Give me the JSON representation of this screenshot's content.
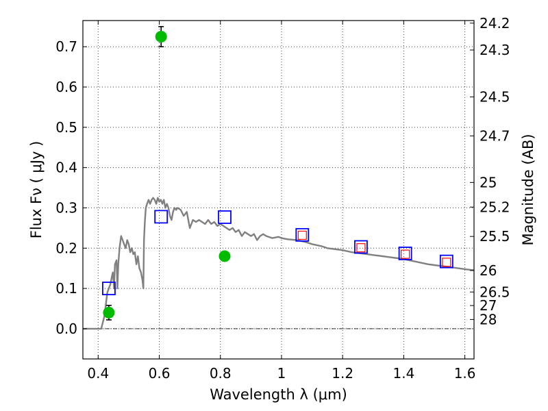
{
  "chart_data": {
    "type": "scatter",
    "xlabel": "Wavelength  λ (μm)",
    "ylabel": "Flux  Fν  ( μJy )",
    "ylabel2": "Magnitude (AB)",
    "xlim": [
      0.35,
      1.63
    ],
    "ylim": [
      -0.075,
      0.765
    ],
    "grid": true,
    "x_ticks": [
      {
        "value": 0.4,
        "label": "0.4"
      },
      {
        "value": 0.6,
        "label": "0.6"
      },
      {
        "value": 0.8,
        "label": "0.8"
      },
      {
        "value": 1.0,
        "label": "1"
      },
      {
        "value": 1.2,
        "label": "1.2"
      },
      {
        "value": 1.4,
        "label": "1.4"
      },
      {
        "value": 1.6,
        "label": "1.6"
      }
    ],
    "y_ticks": [
      {
        "value": 0.0,
        "label": "0.0"
      },
      {
        "value": 0.1,
        "label": "0.1"
      },
      {
        "value": 0.2,
        "label": "0.2"
      },
      {
        "value": 0.3,
        "label": "0.3"
      },
      {
        "value": 0.4,
        "label": "0.4"
      },
      {
        "value": 0.5,
        "label": "0.5"
      },
      {
        "value": 0.6,
        "label": "0.6"
      },
      {
        "value": 0.7,
        "label": "0.7"
      }
    ],
    "mag_ticks": [
      {
        "value": 24.2,
        "label": "24.2"
      },
      {
        "value": 24.3,
        "label": "24.3"
      },
      {
        "value": 24.5,
        "label": "24.5"
      },
      {
        "value": 24.7,
        "label": "24.7"
      },
      {
        "value": 25.0,
        "label": "25"
      },
      {
        "value": 25.2,
        "label": "25.2"
      },
      {
        "value": 25.5,
        "label": "25.5"
      },
      {
        "value": 26.0,
        "label": "26"
      },
      {
        "value": 26.5,
        "label": "26.5"
      },
      {
        "value": 27.0,
        "label": "27"
      },
      {
        "value": 28.0,
        "label": "28"
      }
    ],
    "model_spectrum": {
      "color": "#808080",
      "points": [
        [
          0.35,
          0.0
        ],
        [
          0.41,
          0.0
        ],
        [
          0.42,
          0.03
        ],
        [
          0.425,
          0.06
        ],
        [
          0.43,
          0.09
        ],
        [
          0.435,
          0.1
        ],
        [
          0.44,
          0.11
        ],
        [
          0.445,
          0.13
        ],
        [
          0.448,
          0.14
        ],
        [
          0.452,
          0.1
        ],
        [
          0.455,
          0.16
        ],
        [
          0.46,
          0.17
        ],
        [
          0.463,
          0.1
        ],
        [
          0.466,
          0.16
        ],
        [
          0.47,
          0.2
        ],
        [
          0.475,
          0.23
        ],
        [
          0.48,
          0.22
        ],
        [
          0.485,
          0.21
        ],
        [
          0.49,
          0.2
        ],
        [
          0.495,
          0.22
        ],
        [
          0.5,
          0.21
        ],
        [
          0.505,
          0.19
        ],
        [
          0.51,
          0.2
        ],
        [
          0.515,
          0.185
        ],
        [
          0.52,
          0.19
        ],
        [
          0.525,
          0.16
        ],
        [
          0.53,
          0.18
        ],
        [
          0.535,
          0.15
        ],
        [
          0.54,
          0.14
        ],
        [
          0.545,
          0.12
        ],
        [
          0.548,
          0.1
        ],
        [
          0.55,
          0.22
        ],
        [
          0.553,
          0.27
        ],
        [
          0.556,
          0.3
        ],
        [
          0.56,
          0.31
        ],
        [
          0.565,
          0.32
        ],
        [
          0.57,
          0.31
        ],
        [
          0.575,
          0.32
        ],
        [
          0.58,
          0.325
        ],
        [
          0.585,
          0.32
        ],
        [
          0.59,
          0.31
        ],
        [
          0.595,
          0.325
        ],
        [
          0.6,
          0.315
        ],
        [
          0.605,
          0.32
        ],
        [
          0.61,
          0.31
        ],
        [
          0.615,
          0.32
        ],
        [
          0.62,
          0.3
        ],
        [
          0.625,
          0.31
        ],
        [
          0.63,
          0.3
        ],
        [
          0.635,
          0.28
        ],
        [
          0.64,
          0.27
        ],
        [
          0.645,
          0.29
        ],
        [
          0.65,
          0.3
        ],
        [
          0.655,
          0.295
        ],
        [
          0.66,
          0.3
        ],
        [
          0.67,
          0.295
        ],
        [
          0.68,
          0.28
        ],
        [
          0.69,
          0.29
        ],
        [
          0.7,
          0.25
        ],
        [
          0.705,
          0.26
        ],
        [
          0.71,
          0.27
        ],
        [
          0.72,
          0.265
        ],
        [
          0.73,
          0.27
        ],
        [
          0.74,
          0.265
        ],
        [
          0.75,
          0.26
        ],
        [
          0.76,
          0.27
        ],
        [
          0.77,
          0.26
        ],
        [
          0.78,
          0.265
        ],
        [
          0.79,
          0.255
        ],
        [
          0.8,
          0.26
        ],
        [
          0.81,
          0.255
        ],
        [
          0.82,
          0.25
        ],
        [
          0.83,
          0.245
        ],
        [
          0.84,
          0.25
        ],
        [
          0.85,
          0.24
        ],
        [
          0.86,
          0.245
        ],
        [
          0.87,
          0.23
        ],
        [
          0.88,
          0.24
        ],
        [
          0.89,
          0.235
        ],
        [
          0.9,
          0.23
        ],
        [
          0.91,
          0.235
        ],
        [
          0.92,
          0.22
        ],
        [
          0.93,
          0.23
        ],
        [
          0.94,
          0.235
        ],
        [
          0.95,
          0.23
        ],
        [
          0.97,
          0.225
        ],
        [
          0.99,
          0.228
        ],
        [
          1.0,
          0.225
        ],
        [
          1.02,
          0.222
        ],
        [
          1.05,
          0.22
        ],
        [
          1.08,
          0.215
        ],
        [
          1.1,
          0.21
        ],
        [
          1.13,
          0.205
        ],
        [
          1.15,
          0.2
        ],
        [
          1.18,
          0.197
        ],
        [
          1.2,
          0.195
        ],
        [
          1.23,
          0.19
        ],
        [
          1.25,
          0.188
        ],
        [
          1.28,
          0.185
        ],
        [
          1.3,
          0.183
        ],
        [
          1.33,
          0.18
        ],
        [
          1.35,
          0.178
        ],
        [
          1.38,
          0.175
        ],
        [
          1.4,
          0.173
        ],
        [
          1.43,
          0.168
        ],
        [
          1.45,
          0.165
        ],
        [
          1.48,
          0.16
        ],
        [
          1.5,
          0.158
        ],
        [
          1.53,
          0.155
        ],
        [
          1.55,
          0.153
        ],
        [
          1.58,
          0.15
        ],
        [
          1.6,
          0.148
        ],
        [
          1.63,
          0.145
        ]
      ]
    },
    "model_photometry": {
      "color": "#0000ff",
      "points": [
        {
          "x": 0.435,
          "y": 0.1
        },
        {
          "x": 0.606,
          "y": 0.278
        },
        {
          "x": 0.814,
          "y": 0.277
        },
        {
          "x": 1.068,
          "y": 0.233
        },
        {
          "x": 1.26,
          "y": 0.203
        },
        {
          "x": 1.405,
          "y": 0.187
        },
        {
          "x": 1.54,
          "y": 0.167
        }
      ]
    },
    "model_photometry_inner": {
      "color": "#ff0000",
      "points": [
        {
          "x": 1.068,
          "y": 0.232
        },
        {
          "x": 1.26,
          "y": 0.201
        },
        {
          "x": 1.405,
          "y": 0.185
        },
        {
          "x": 1.54,
          "y": 0.165
        }
      ]
    },
    "observed": {
      "color": "#00bb00",
      "points": [
        {
          "x": 0.435,
          "y": 0.04,
          "err": 0.018
        },
        {
          "x": 0.606,
          "y": 0.725,
          "err": 0.025
        },
        {
          "x": 0.814,
          "y": 0.18,
          "err": 0.01
        }
      ]
    }
  }
}
